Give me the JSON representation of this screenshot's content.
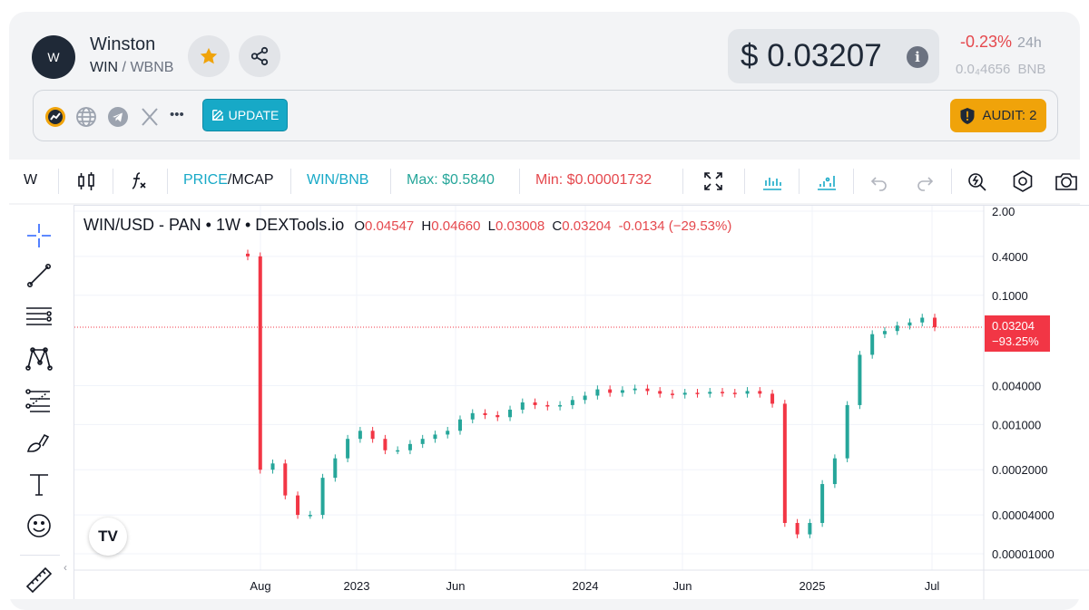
{
  "token": {
    "avatar_letter": "W",
    "name": "Winston",
    "symbol": "WIN",
    "separator": " / ",
    "quote": "WBNB"
  },
  "price": {
    "usd": "$ 0.03207",
    "info": "i",
    "change": "-0.23%",
    "period": "24h",
    "bnb": "0.0₄4656",
    "bnb_unit": "BNB"
  },
  "links": {
    "update_label": "UPDATE",
    "more": "•••",
    "audit_label": "AUDIT: 2"
  },
  "toolbar": {
    "interval": "W",
    "price": "PRICE",
    "slash": "/",
    "mcap": "MCAP",
    "pair": "WIN/BNB",
    "max": "Max: $0.5840",
    "min": "Min: $0.00001732"
  },
  "chart_legend": {
    "title": "WIN/USD - PAN • 1W • DEXTools.io",
    "o_label": "O",
    "o": "0.04547",
    "h_label": "H",
    "h": "0.04660",
    "l_label": "L",
    "l": "0.03008",
    "c_label": "C",
    "c": "0.03204",
    "change": "-0.0134 (−29.53%)"
  },
  "price_tag": {
    "price": "0.03204",
    "pct": "−93.25%"
  },
  "colors": {
    "up": "#26a69a",
    "down": "#f23645",
    "accent": "#17a9c7",
    "audit": "#f0a30a"
  },
  "chart_data": {
    "type": "candlestick",
    "scale": "log",
    "y_ticks": [
      "2.00",
      "0.4000",
      "0.1000",
      "0.004000",
      "0.001000",
      "0.0002000",
      "0.00004000",
      "0.00001000"
    ],
    "x_ticks": [
      "Aug",
      "2023",
      "Jun",
      "2024",
      "Jun",
      "2025",
      "Jul"
    ],
    "current_price": 0.03204,
    "series_closes": [
      0.4,
      0.0002,
      0.00025,
      8e-05,
      4e-05,
      4e-05,
      0.00015,
      0.0003,
      0.0006,
      0.0008,
      0.0006,
      0.0004,
      0.0004,
      0.0005,
      0.0006,
      0.0007,
      0.0008,
      0.0012,
      0.0015,
      0.0014,
      0.0013,
      0.0017,
      0.0022,
      0.002,
      0.0019,
      0.002,
      0.0024,
      0.0028,
      0.0035,
      0.0031,
      0.0034,
      0.0036,
      0.0033,
      0.003,
      0.0029,
      0.0031,
      0.003,
      0.0032,
      0.0031,
      0.003,
      0.0033,
      0.003,
      0.0021,
      3e-05,
      2e-05,
      3e-05,
      0.00012,
      0.0003,
      0.002,
      0.012,
      0.025,
      0.028,
      0.034,
      0.038,
      0.045,
      0.032
    ]
  }
}
